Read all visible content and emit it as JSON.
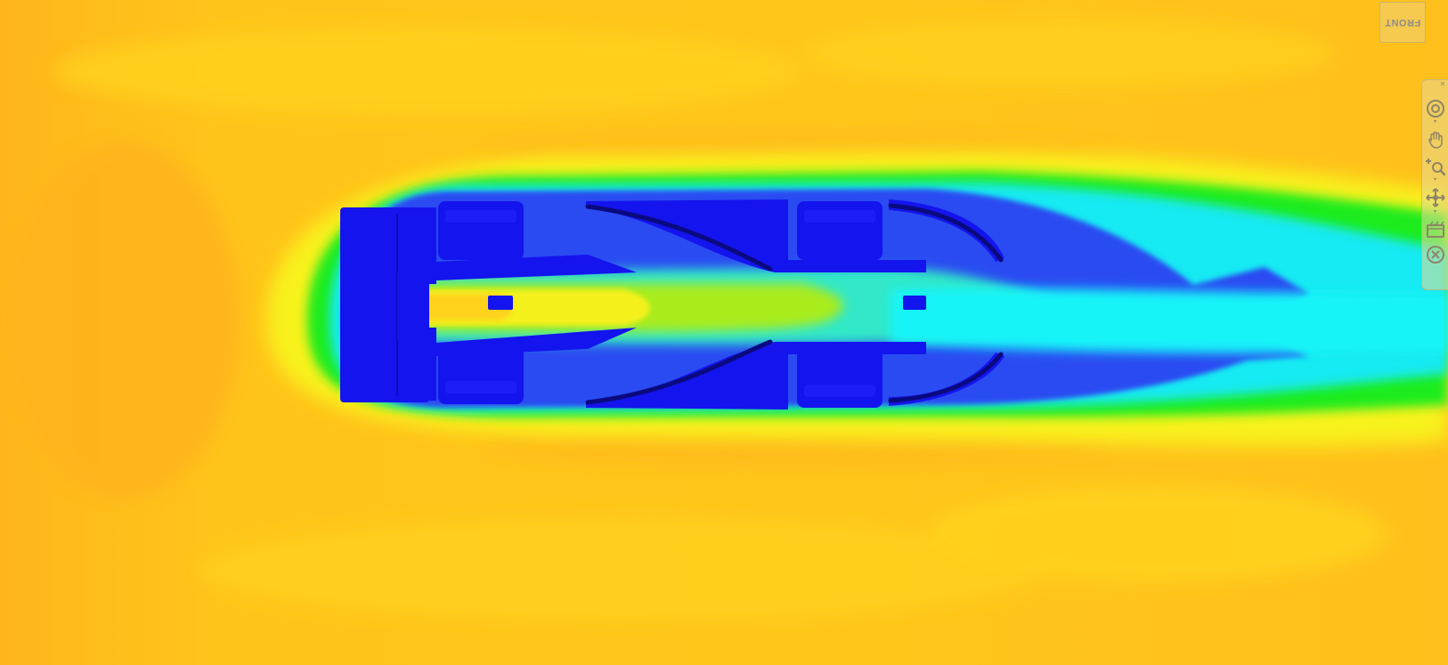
{
  "viewport": {
    "view_cube": {
      "face": "FRONT"
    },
    "colors": {
      "freestream": "#ffc21a",
      "solid_body": "#1414ee",
      "wake_cyan": "#12f0f5",
      "wake_green": "#19f01a",
      "stagnation_yellow": "#f5f51a"
    }
  },
  "navigation_bar": {
    "tools": [
      {
        "name": "steering-wheel",
        "icon": "steering-wheel-icon"
      },
      {
        "name": "pan",
        "icon": "hand-icon"
      },
      {
        "name": "zoom",
        "icon": "zoom-icon"
      },
      {
        "name": "orbit",
        "icon": "orbit-icon"
      },
      {
        "name": "show-motion",
        "icon": "film-icon"
      },
      {
        "name": "close-nav",
        "icon": "close-circle-icon"
      }
    ]
  }
}
